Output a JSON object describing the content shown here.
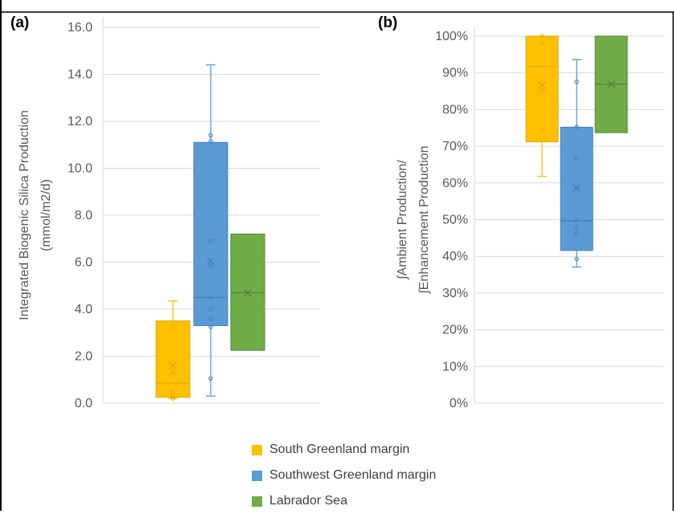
{
  "panels": [
    {
      "label": "(a)"
    },
    {
      "label": "(b)"
    }
  ],
  "chart_data": [
    {
      "type": "box",
      "panel": "(a)",
      "ylabel_lines": [
        "Integrated Biogenic Silica Production",
        "(mmol/m2/d)"
      ],
      "ylim": [
        0,
        16
      ],
      "yticks": [
        0,
        2,
        4,
        6,
        8,
        10,
        12,
        14,
        16
      ],
      "ytick_labels": [
        "0.0",
        "2.0",
        "4.0",
        "6.0",
        "8.0",
        "10.0",
        "12.0",
        "14.0",
        "16.0"
      ],
      "grid": true,
      "series": [
        {
          "name": "South Greenland margin",
          "color": "#FFC000",
          "edge": "#E0A800",
          "whisker_low": 0.2,
          "q1": 0.25,
          "median": 0.85,
          "q3": 3.5,
          "whisker_high": 4.35,
          "mean": 1.6,
          "points": [
            0.2,
            0.3,
            0.45,
            1.3,
            3.25
          ]
        },
        {
          "name": "Southwest Greenland margin",
          "color": "#5B9BD5",
          "edge": "#3F7FBF",
          "whisker_low": 0.3,
          "q1": 3.3,
          "median": 4.5,
          "q3": 11.1,
          "whisker_high": 14.4,
          "mean": 6.05,
          "points": [
            1.05,
            3.25,
            3.6,
            4.0,
            4.5,
            5.85,
            6.9,
            11.15,
            11.4
          ]
        },
        {
          "name": "Labrador Sea",
          "color": "#70AD47",
          "edge": "#548235",
          "whisker_low": 2.25,
          "q1": 2.25,
          "median": 4.7,
          "q3": 7.2,
          "whisker_high": 7.2,
          "mean": 4.7,
          "points": []
        }
      ]
    },
    {
      "type": "box",
      "panel": "(b)",
      "ylabel_lines": [
        "∫Ambient Production/",
        "∫Enhancement Production"
      ],
      "ylim": [
        0,
        100
      ],
      "yticks": [
        0,
        10,
        20,
        30,
        40,
        50,
        60,
        70,
        80,
        90,
        100
      ],
      "ytick_labels": [
        "0%",
        "10%",
        "20%",
        "30%",
        "40%",
        "50%",
        "60%",
        "70%",
        "80%",
        "90%",
        "100%"
      ],
      "grid": true,
      "series": [
        {
          "name": "South Greenland margin",
          "color": "#FFC000",
          "edge": "#E0A800",
          "whisker_low": 61.8,
          "q1": 71.2,
          "median": 91.7,
          "q3": 100,
          "whisker_high": 100,
          "mean": 86.6,
          "points": [
            74.3,
            85.2,
            98.1,
            100
          ]
        },
        {
          "name": "Southwest Greenland margin",
          "color": "#5B9BD5",
          "edge": "#3F7FBF",
          "whisker_low": 37.1,
          "q1": 41.6,
          "median": 49.7,
          "q3": 75.2,
          "whisker_high": 93.6,
          "mean": 58.6,
          "points": [
            39.3,
            46.1,
            48.0,
            49.7,
            58.6,
            66.8,
            75.2,
            87.6
          ]
        },
        {
          "name": "Labrador Sea",
          "color": "#70AD47",
          "edge": "#548235",
          "whisker_low": 73.7,
          "q1": 73.7,
          "median": 86.9,
          "q3": 100,
          "whisker_high": 100,
          "mean": 86.9,
          "points": []
        }
      ]
    }
  ],
  "legend": {
    "placement": "bottom",
    "items": [
      {
        "label": "South Greenland margin",
        "color": "#FFC000"
      },
      {
        "label": "Southwest Greenland margin",
        "color": "#5B9BD5"
      },
      {
        "label": "Labrador Sea",
        "color": "#70AD47"
      }
    ]
  }
}
